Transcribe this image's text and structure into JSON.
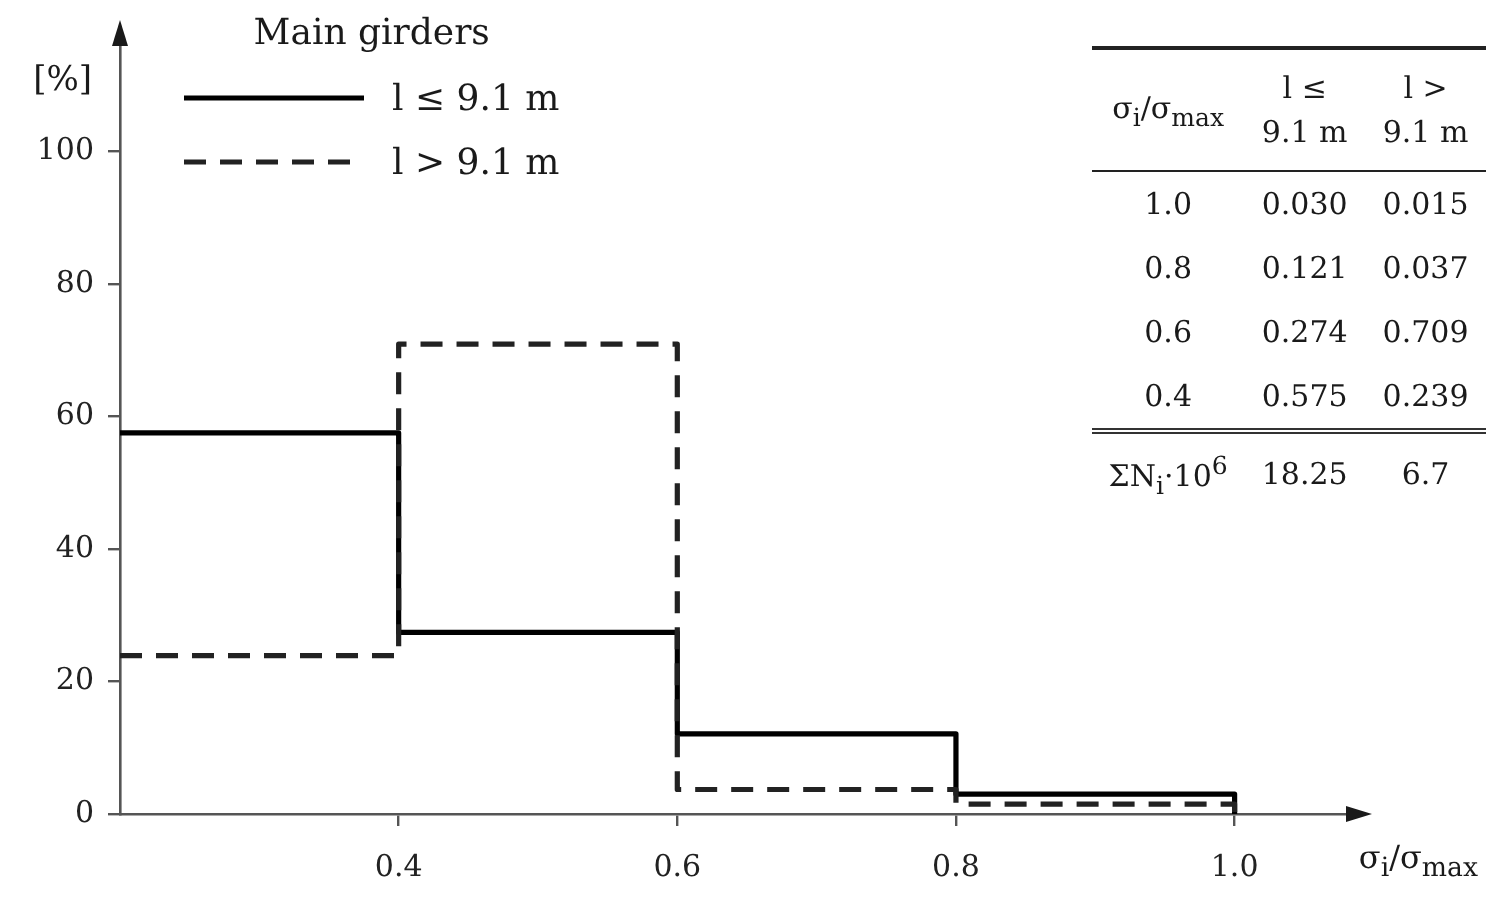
{
  "chart_data": {
    "type": "histogram",
    "bins": [
      0.2,
      0.4,
      0.6,
      0.8,
      1.0
    ],
    "series": [
      {
        "name": "l ≤ 9.1 m",
        "color": "#000000",
        "line_style": "solid",
        "values": [
          57.5,
          27.4,
          12.1,
          3.0
        ]
      },
      {
        "name": "l > 9.1 m",
        "color": "#222222",
        "line_style": "dashed",
        "values": [
          23.9,
          70.9,
          3.7,
          1.5
        ]
      }
    ],
    "xlabel": "σ$_{i}$/σ$_{max}$",
    "ylabel": "[%]",
    "legend_title": "Main girders",
    "legend": "top left",
    "xlim": [
      0.2,
      1.09
    ],
    "ylim": [
      0,
      118
    ],
    "xticks": [
      0.4,
      0.6,
      0.8,
      {
        "value": 1,
        "label": "1.0"
      }
    ],
    "yticks": [
      0,
      20,
      40,
      60,
      80,
      100
    ],
    "annotations": [
      "σ$_{i}$/σ$_{max}$",
      "1.0",
      "0.030",
      "0.015",
      "0.8",
      "0.121",
      "0.037",
      "0.6",
      "0.274",
      "0.709",
      "0.4",
      "0.575",
      "0.239",
      "ΣN$_{i}$·10$^{6}$",
      "18.25",
      "6.7"
    ]
  }
}
